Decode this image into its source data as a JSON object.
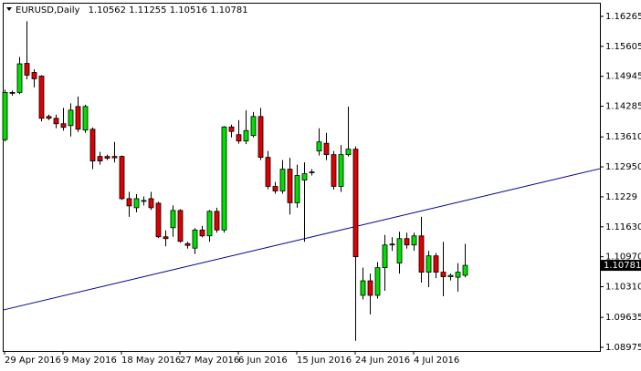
{
  "chart_data": {
    "type": "candlestick",
    "symbol": "EURUSD,Daily",
    "categories": [
      "29 Apr 2016",
      null,
      null,
      null,
      null,
      null,
      null,
      null,
      "9 May 2016",
      null,
      null,
      null,
      null,
      null,
      null,
      null,
      "18 May 2016",
      null,
      null,
      null,
      null,
      null,
      null,
      null,
      "27 May 2016",
      null,
      null,
      null,
      null,
      null,
      null,
      null,
      "6 Jun 2016",
      null,
      null,
      null,
      null,
      null,
      null,
      null,
      "15 Jun 2016",
      null,
      null,
      null,
      null,
      null,
      null,
      null,
      "24 Jun 2016",
      null,
      null,
      null,
      null,
      null,
      null,
      null,
      "4 Jul 2016",
      null,
      null,
      null,
      null,
      null,
      null,
      null
    ],
    "open": [
      1.1355,
      1.1459,
      1.1459,
      1.1523,
      1.1503,
      1.1495,
      1.1406,
      1.1402,
      1.139,
      1.1386,
      1.1428,
      1.1376,
      1.1378,
      1.1318,
      1.1318,
      1.1318,
      1.1318,
      1.1225,
      1.1205,
      1.1219,
      1.1225,
      1.1215,
      1.1141,
      1.1161,
      1.1199,
      1.1126,
      1.1116,
      1.1156,
      1.1143,
      1.1197,
      1.1156,
      1.1383,
      1.1366,
      1.1352,
      1.1364,
      1.1406,
      1.1316,
      1.1252,
      1.1242,
      1.129,
      1.1216,
      1.1266,
      1.1282,
      1.133,
      1.1347,
      1.1322,
      1.1252,
      1.1322,
      1.1334,
      1.1012,
      1.1044,
      1.1012,
      1.1073,
      1.1123,
      1.1083,
      1.1137,
      1.1123,
      1.1143,
      1.1063,
      1.1099,
      1.1063,
      1.1053,
      1.1052,
      1.10562
    ],
    "high": [
      1.1465,
      1.1463,
      1.1537,
      1.1616,
      1.151,
      1.1497,
      1.141,
      1.141,
      1.1425,
      1.1435,
      1.145,
      1.1432,
      1.1382,
      1.1328,
      1.1322,
      1.135,
      1.132,
      1.124,
      1.1235,
      1.123,
      1.124,
      1.1218,
      1.1155,
      1.121,
      1.1202,
      1.113,
      1.116,
      1.1165,
      1.12,
      1.1205,
      1.1385,
      1.1388,
      1.1398,
      1.142,
      1.1416,
      1.1425,
      1.133,
      1.1262,
      1.131,
      1.1315,
      1.13,
      1.1305,
      1.129,
      1.138,
      1.137,
      1.133,
      1.1343,
      1.1428,
      1.134,
      1.1073,
      1.106,
      1.1085,
      1.1145,
      1.114,
      1.1152,
      1.115,
      1.115,
      1.1185,
      1.111,
      1.1105,
      1.113,
      1.106,
      1.1083,
      1.11255
    ],
    "low": [
      1.1351,
      1.1452,
      1.1455,
      1.1488,
      1.147,
      1.1395,
      1.1398,
      1.138,
      1.1375,
      1.1362,
      1.1372,
      1.137,
      1.129,
      1.13,
      1.131,
      1.1305,
      1.1222,
      1.1185,
      1.1195,
      1.121,
      1.12,
      1.1138,
      1.112,
      1.1141,
      1.1128,
      1.1115,
      1.1103,
      1.114,
      1.113,
      1.115,
      1.115,
      1.136,
      1.1346,
      1.1345,
      1.136,
      1.131,
      1.1246,
      1.1236,
      1.1236,
      1.119,
      1.1205,
      1.113,
      1.1276,
      1.132,
      1.131,
      1.1245,
      1.124,
      1.1318,
      1.0912,
      1.1003,
      1.097,
      1.1005,
      1.1022,
      1.111,
      1.106,
      1.1115,
      1.111,
      1.104,
      1.103,
      1.105,
      1.101,
      1.1045,
      1.102,
      1.10516
    ],
    "close": [
      1.1459,
      1.1457,
      1.1522,
      1.1497,
      1.1489,
      1.1402,
      1.1402,
      1.139,
      1.1382,
      1.142,
      1.1378,
      1.1428,
      1.1308,
      1.1308,
      1.1314,
      1.1315,
      1.1225,
      1.1209,
      1.1225,
      1.1221,
      1.1205,
      1.1141,
      1.1137,
      1.1199,
      1.1131,
      1.1122,
      1.1156,
      1.1143,
      1.1197,
      1.1156,
      1.1383,
      1.1373,
      1.1352,
      1.1375,
      1.1406,
      1.1316,
      1.1252,
      1.1242,
      1.129,
      1.1216,
      1.1276,
      1.128,
      1.1284,
      1.135,
      1.1322,
      1.1252,
      1.1322,
      1.1334,
      1.1097,
      1.1044,
      1.1012,
      1.1073,
      1.1123,
      1.1125,
      1.1137,
      1.1123,
      1.1143,
      1.1063,
      1.1099,
      1.1063,
      1.1053,
      1.1056,
      1.1063,
      1.10781
    ],
    "up_color": "#00e000",
    "down_color": "#e00000",
    "ylim": [
      1.08895,
      1.16546
    ],
    "yticks": [
      1.16265,
      1.15605,
      1.14945,
      1.14285,
      {
        "value": 1.1361,
        "label": "1.13610"
      },
      {
        "value": 1.1295,
        "label": "1.12950"
      },
      1.1229,
      {
        "value": 1.1163,
        "label": "1.11630"
      },
      {
        "value": 1.1097,
        "label": "1.10970"
      },
      {
        "value": 1.1031,
        "label": "1.10310"
      },
      1.09635,
      1.08975
    ],
    "trendline": {
      "x": [
        0,
        81.5
      ],
      "y": [
        1.098,
        1.1291
      ],
      "color": "#00008b"
    }
  }
}
